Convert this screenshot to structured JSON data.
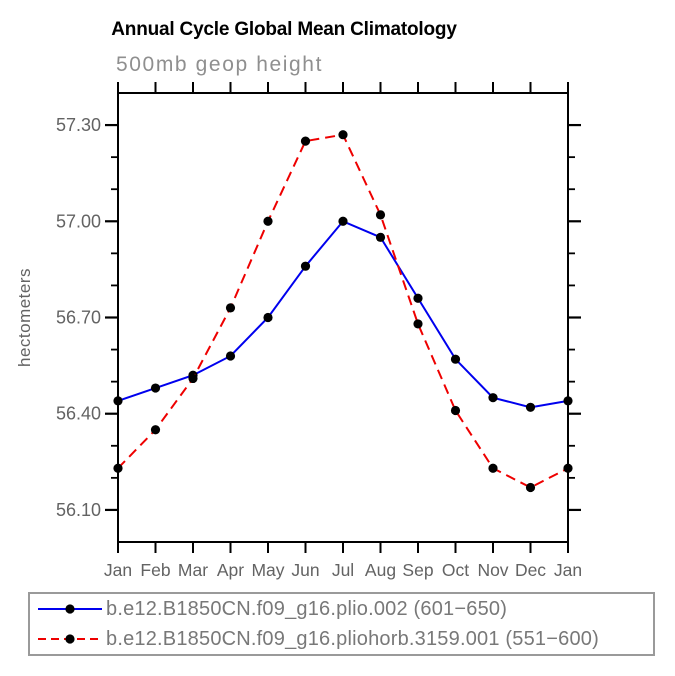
{
  "chart_data": {
    "type": "line",
    "title": "Annual Cycle Global Mean Climatology",
    "subtitle": "500mb geop height",
    "ylabel": "hectometers",
    "xlabel": "",
    "categories": [
      "Jan",
      "Feb",
      "Mar",
      "Apr",
      "May",
      "Jun",
      "Jul",
      "Aug",
      "Sep",
      "Oct",
      "Nov",
      "Dec",
      "Jan"
    ],
    "ylim": [
      56.0,
      57.4
    ],
    "y_major_ticks": [
      56.1,
      56.4,
      56.7,
      57.0,
      57.3
    ],
    "y_minor_step": 0.1,
    "grid": "off",
    "legend_position": "bottom-left-box",
    "series": [
      {
        "name": "b.e12.B1850CN.f09_g16.plio.002 (601−650)",
        "color": "#0000ee",
        "style": "solid",
        "marker": "circle",
        "marker_color": "#000000",
        "values": [
          56.44,
          56.48,
          56.52,
          56.58,
          56.7,
          56.86,
          57.0,
          56.95,
          56.76,
          56.57,
          56.45,
          56.42,
          56.44
        ]
      },
      {
        "name": "b.e12.B1850CN.f09_g16.pliohorb.3159.001 (551−600)",
        "color": "#ee0000",
        "style": "dashed",
        "marker": "circle",
        "marker_color": "#000000",
        "values": [
          56.23,
          56.35,
          56.51,
          56.73,
          57.0,
          57.25,
          57.27,
          57.02,
          56.68,
          56.41,
          56.23,
          56.17,
          56.23
        ]
      }
    ]
  }
}
